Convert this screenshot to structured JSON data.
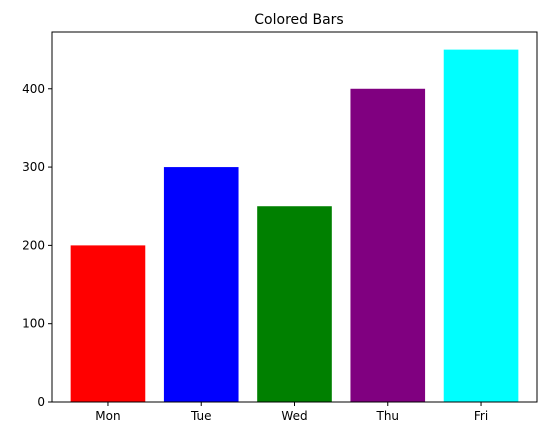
{
  "chart_data": {
    "type": "bar",
    "title": "Colored Bars",
    "xlabel": "",
    "ylabel": "",
    "categories": [
      "Mon",
      "Tue",
      "Wed",
      "Thu",
      "Fri"
    ],
    "values": [
      200,
      300,
      250,
      400,
      450
    ],
    "colors": [
      "#ff0000",
      "#0000ff",
      "#008000",
      "#800080",
      "#00ffff"
    ],
    "ylim": [
      0,
      472.5
    ],
    "yticks": [
      0,
      100,
      200,
      300,
      400
    ],
    "grid": false,
    "legend": "none"
  }
}
